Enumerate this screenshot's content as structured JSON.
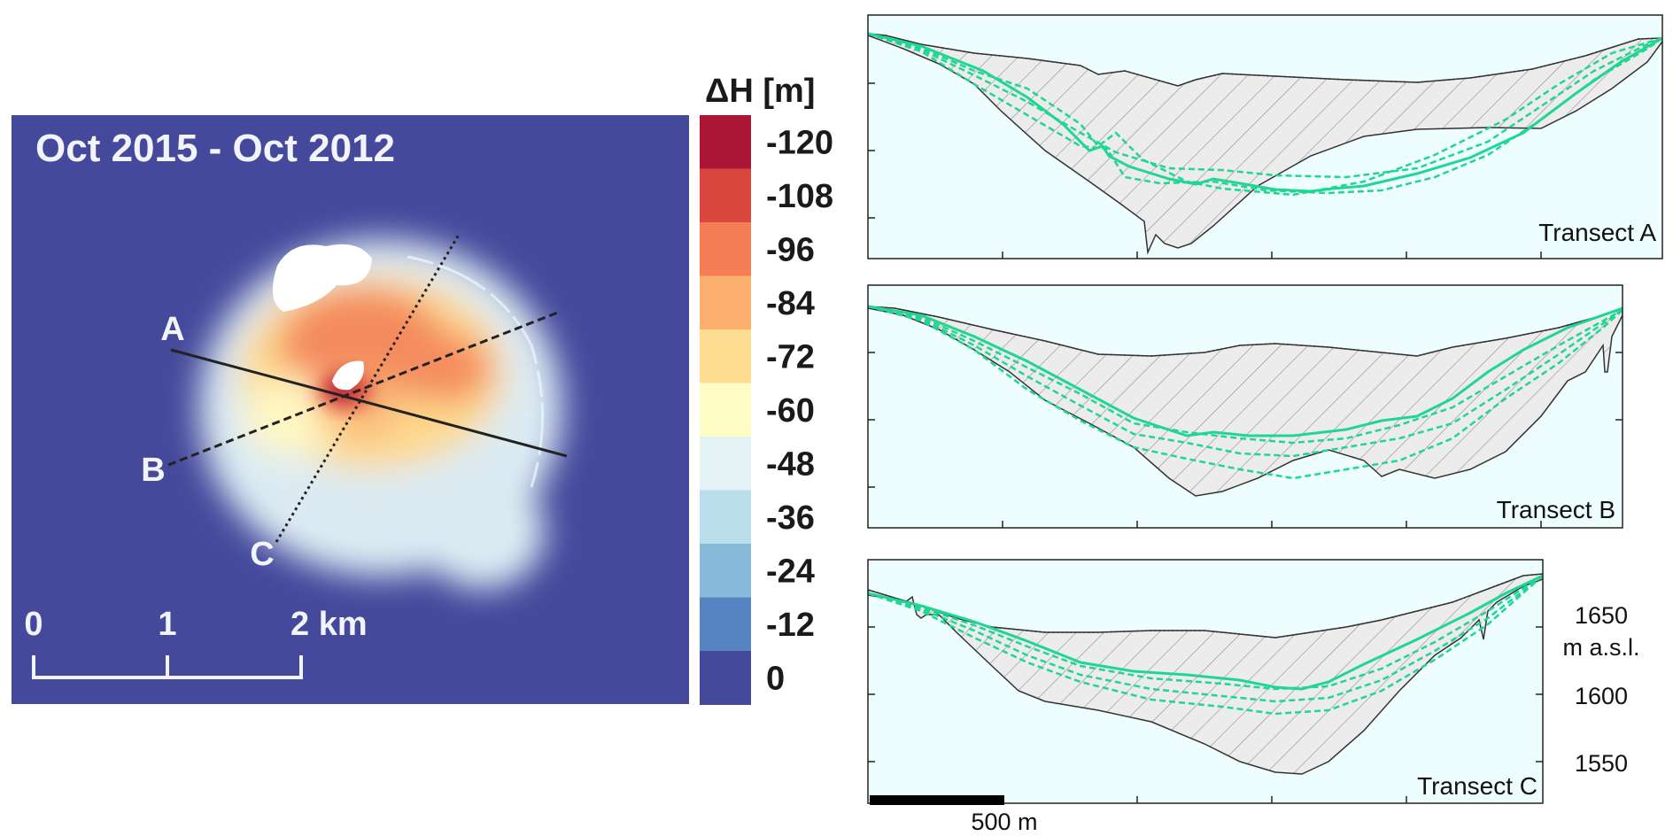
{
  "map": {
    "title": "Oct 2015 - Oct 2012",
    "transect_labels": [
      "A",
      "B",
      "C"
    ],
    "scalebar": {
      "ticks": [
        "0",
        "1",
        "2 km"
      ]
    },
    "colors": {
      "background": "#45499c",
      "line": "#222222",
      "text": "#f2f4fa"
    }
  },
  "colorbar": {
    "title": "ΔH [m]",
    "labels": [
      "-120",
      "-108",
      "-96",
      "-84",
      "-72",
      "-60",
      "-48",
      "-36",
      "-24",
      "-12",
      "0"
    ],
    "colors": [
      "#ab1637",
      "#d9473f",
      "#f47d55",
      "#fdb06d",
      "#fedc92",
      "#fffdc5",
      "#e5f3f7",
      "#b9dfec",
      "#87bad9",
      "#5684c2",
      "#45499c"
    ]
  },
  "profiles": {
    "labels": [
      "Transect A",
      "Transect B",
      "Transect C"
    ],
    "y_labels": [
      "1650",
      "m a.s.l.",
      "1600",
      "1550"
    ],
    "scalebar": "500 m",
    "colors": {
      "fill": "#ececec",
      "water": "#eefefe",
      "hatch": "#9a9a9a",
      "model": "#1fd693",
      "bed": "#333333"
    }
  }
}
